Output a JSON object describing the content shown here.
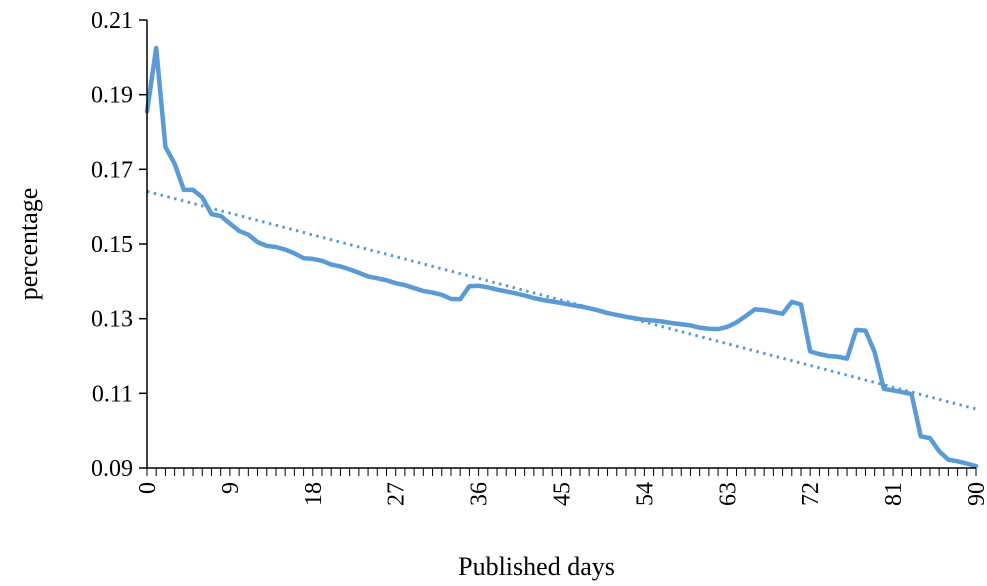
{
  "chart_data": {
    "type": "line",
    "xlabel": "Published days",
    "ylabel": "percentage",
    "xlim": [
      0,
      90
    ],
    "ylim": [
      0.09,
      0.21
    ],
    "x_ticks": [
      0,
      9,
      18,
      27,
      36,
      45,
      54,
      63,
      72,
      81,
      90
    ],
    "y_ticks": [
      0.09,
      0.11,
      0.13,
      0.15,
      0.17,
      0.19,
      0.21
    ],
    "y_tick_labels": [
      "0.09",
      "0.11",
      "0.13",
      "0.15",
      "0.17",
      "0.19",
      "0.21"
    ],
    "legend": "none",
    "grid": false,
    "series": [
      {
        "color": "#5b9bd5",
        "style": "solid",
        "points": [
          [
            0,
            0.1855
          ],
          [
            1,
            0.2025
          ],
          [
            2,
            0.176
          ],
          [
            3,
            0.1715
          ],
          [
            4,
            0.1645
          ],
          [
            5,
            0.1645
          ],
          [
            6,
            0.1625
          ],
          [
            7,
            0.158
          ],
          [
            8,
            0.1575
          ],
          [
            9,
            0.1555
          ],
          [
            10,
            0.1535
          ],
          [
            11,
            0.1525
          ],
          [
            12,
            0.1505
          ],
          [
            13,
            0.1495
          ],
          [
            14,
            0.1492
          ],
          [
            15,
            0.1485
          ],
          [
            16,
            0.1475
          ],
          [
            17,
            0.1462
          ],
          [
            18,
            0.146
          ],
          [
            19,
            0.1455
          ],
          [
            20,
            0.1445
          ],
          [
            21,
            0.144
          ],
          [
            22,
            0.1432
          ],
          [
            23,
            0.1423
          ],
          [
            24,
            0.1413
          ],
          [
            25,
            0.1408
          ],
          [
            26,
            0.1403
          ],
          [
            27,
            0.1395
          ],
          [
            28,
            0.139
          ],
          [
            29,
            0.1382
          ],
          [
            30,
            0.1374
          ],
          [
            31,
            0.137
          ],
          [
            32,
            0.1364
          ],
          [
            33,
            0.1353
          ],
          [
            34,
            0.1352
          ],
          [
            35,
            0.1387
          ],
          [
            36,
            0.1388
          ],
          [
            37,
            0.1384
          ],
          [
            38,
            0.1378
          ],
          [
            39,
            0.1373
          ],
          [
            40,
            0.1368
          ],
          [
            41,
            0.1362
          ],
          [
            42,
            0.1355
          ],
          [
            43,
            0.135
          ],
          [
            44,
            0.1346
          ],
          [
            45,
            0.1342
          ],
          [
            46,
            0.1337
          ],
          [
            47,
            0.1333
          ],
          [
            48,
            0.1328
          ],
          [
            49,
            0.1322
          ],
          [
            50,
            0.1315
          ],
          [
            51,
            0.131
          ],
          [
            52,
            0.1305
          ],
          [
            53,
            0.1301
          ],
          [
            54,
            0.1297
          ],
          [
            55,
            0.1295
          ],
          [
            56,
            0.1292
          ],
          [
            57,
            0.1288
          ],
          [
            58,
            0.1285
          ],
          [
            59,
            0.1282
          ],
          [
            60,
            0.1276
          ],
          [
            61,
            0.1273
          ],
          [
            62,
            0.1272
          ],
          [
            63,
            0.1278
          ],
          [
            64,
            0.129
          ],
          [
            65,
            0.1307
          ],
          [
            66,
            0.1325
          ],
          [
            67,
            0.1323
          ],
          [
            68,
            0.1318
          ],
          [
            69,
            0.1313
          ],
          [
            70,
            0.1345
          ],
          [
            71,
            0.1338
          ],
          [
            72,
            0.1212
          ],
          [
            73,
            0.1205
          ],
          [
            74,
            0.12
          ],
          [
            75,
            0.1198
          ],
          [
            76,
            0.1193
          ],
          [
            77,
            0.127
          ],
          [
            78,
            0.1268
          ],
          [
            79,
            0.121
          ],
          [
            80,
            0.1112
          ],
          [
            81,
            0.1108
          ],
          [
            82,
            0.1103
          ],
          [
            83,
            0.1098
          ],
          [
            84,
            0.0985
          ],
          [
            85,
            0.098
          ],
          [
            86,
            0.0945
          ],
          [
            87,
            0.0922
          ],
          [
            88,
            0.0918
          ],
          [
            89,
            0.0912
          ],
          [
            90,
            0.0905
          ]
        ]
      },
      {
        "color": "#5b9bd5",
        "style": "dotted",
        "points": [
          [
            0,
            0.1641
          ],
          [
            90,
            0.1058
          ]
        ]
      }
    ]
  }
}
